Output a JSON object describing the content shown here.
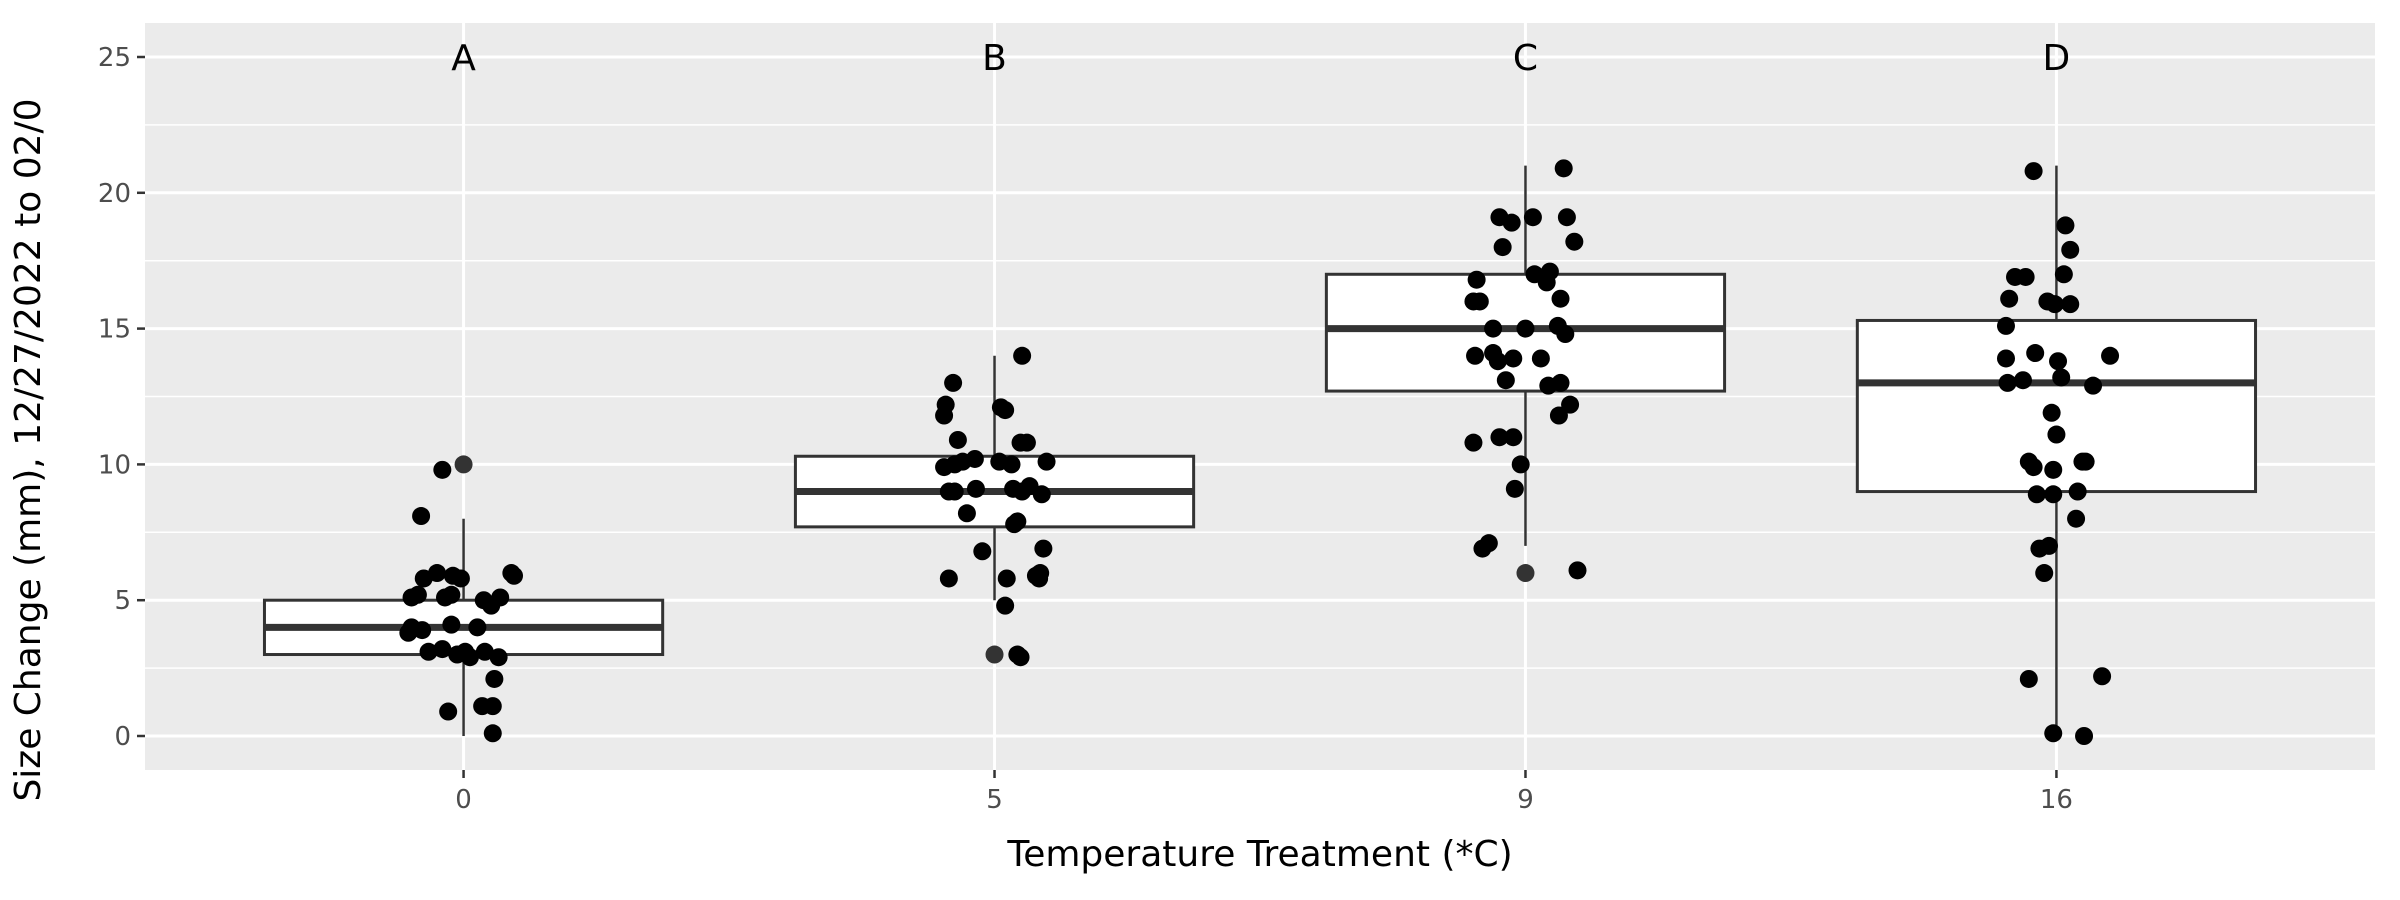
{
  "chart_data": {
    "type": "boxplot",
    "title": "",
    "xlabel": "Temperature Treatment (*C)",
    "ylabel": "Size Change (mm), 12/27/2022 to 02/0",
    "ylim": [
      -1.2,
      26.2
    ],
    "yticks": [
      0,
      5,
      10,
      15,
      20,
      25
    ],
    "categories": [
      "0",
      "5",
      "9",
      "16"
    ],
    "group_letters": [
      "A",
      "B",
      "C",
      "D"
    ],
    "group_letter_y": 25,
    "grid": true,
    "colors": {
      "panel": "#EBEBEB",
      "grid": "#FFFFFF",
      "box_fill": "#FFFFFF",
      "box_line": "#333333",
      "point": "#000000",
      "outlier": "#333333"
    },
    "boxes": [
      {
        "category": "0",
        "whisker_low": 0,
        "q1": 3,
        "median": 4,
        "q3": 5,
        "whisker_high": 8,
        "outliers": [
          10
        ]
      },
      {
        "category": "5",
        "whisker_low": 5,
        "q1": 7.7,
        "median": 9,
        "q3": 10.3,
        "whisker_high": 14,
        "outliers": [
          3
        ]
      },
      {
        "category": "9",
        "whisker_low": 7,
        "q1": 12.7,
        "median": 15,
        "q3": 17,
        "whisker_high": 21,
        "outliers": [
          6
        ]
      },
      {
        "category": "16",
        "whisker_low": 0,
        "q1": 9,
        "median": 13,
        "q3": 15.3,
        "whisker_high": 21,
        "outliers": []
      }
    ],
    "points": [
      [
        [
          -0.04,
          9.8
        ],
        [
          -0.08,
          8.1
        ],
        [
          -0.075,
          5.8
        ],
        [
          -0.05,
          6.0
        ],
        [
          -0.02,
          5.9
        ],
        [
          -0.005,
          5.8
        ],
        [
          0.09,
          6.0
        ],
        [
          0.095,
          5.9
        ],
        [
          -0.098,
          5.1
        ],
        [
          -0.086,
          5.2
        ],
        [
          -0.035,
          5.1
        ],
        [
          -0.023,
          5.2
        ],
        [
          0.038,
          5.0
        ],
        [
          0.052,
          4.8
        ],
        [
          0.069,
          5.1
        ],
        [
          -0.098,
          4.0
        ],
        [
          -0.078,
          3.9
        ],
        [
          -0.023,
          4.1
        ],
        [
          0.026,
          4.0
        ],
        [
          -0.066,
          3.1
        ],
        [
          -0.04,
          3.2
        ],
        [
          -0.012,
          3.0
        ],
        [
          0.003,
          3.1
        ],
        [
          0.012,
          2.9
        ],
        [
          0.04,
          3.1
        ],
        [
          0.066,
          2.9
        ],
        [
          0.058,
          2.1
        ],
        [
          0.035,
          1.1
        ],
        [
          0.055,
          1.1
        ],
        [
          -0.029,
          0.9
        ],
        [
          0.055,
          0.1
        ],
        [
          -0.104,
          3.8
        ]
      ],
      [
        [
          0.052,
          14.0
        ],
        [
          -0.078,
          13.0
        ],
        [
          -0.092,
          12.2
        ],
        [
          -0.095,
          11.8
        ],
        [
          0.012,
          12.1
        ],
        [
          0.02,
          12.0
        ],
        [
          -0.069,
          10.9
        ],
        [
          0.049,
          10.8
        ],
        [
          0.061,
          10.8
        ],
        [
          -0.095,
          9.9
        ],
        [
          -0.075,
          10.0
        ],
        [
          -0.06,
          10.1
        ],
        [
          -0.037,
          10.2
        ],
        [
          0.009,
          10.1
        ],
        [
          0.032,
          10.0
        ],
        [
          0.098,
          10.1
        ],
        [
          -0.086,
          9.0
        ],
        [
          -0.075,
          9.0
        ],
        [
          -0.035,
          9.1
        ],
        [
          0.035,
          9.1
        ],
        [
          0.052,
          9.0
        ],
        [
          0.066,
          9.2
        ],
        [
          0.089,
          8.9
        ],
        [
          -0.052,
          8.2
        ],
        [
          0.043,
          7.9
        ],
        [
          0.037,
          7.8
        ],
        [
          -0.023,
          6.8
        ],
        [
          0.092,
          6.9
        ],
        [
          -0.086,
          5.8
        ],
        [
          0.023,
          5.8
        ],
        [
          0.078,
          5.9
        ],
        [
          0.086,
          6.0
        ],
        [
          0.084,
          5.8
        ],
        [
          0.02,
          4.8
        ],
        [
          0.049,
          2.9
        ],
        [
          0.043,
          3.0
        ]
      ],
      [
        [
          0.072,
          20.9
        ],
        [
          -0.049,
          19.1
        ],
        [
          -0.026,
          18.9
        ],
        [
          0.014,
          19.1
        ],
        [
          0.078,
          19.1
        ],
        [
          -0.043,
          18.0
        ],
        [
          0.092,
          18.2
        ],
        [
          -0.092,
          16.8
        ],
        [
          0.017,
          17.0
        ],
        [
          0.046,
          17.1
        ],
        [
          0.04,
          16.7
        ],
        [
          -0.098,
          16.0
        ],
        [
          -0.086,
          16.0
        ],
        [
          0.066,
          16.1
        ],
        [
          -0.061,
          14.1
        ],
        [
          -0.095,
          14.0
        ],
        [
          -0.052,
          13.8
        ],
        [
          -0.023,
          13.9
        ],
        [
          0.029,
          13.9
        ],
        [
          -0.061,
          15.0
        ],
        [
          0.0,
          15.0
        ],
        [
          0.061,
          15.1
        ],
        [
          0.075,
          14.8
        ],
        [
          -0.037,
          13.1
        ],
        [
          0.043,
          12.9
        ],
        [
          0.066,
          13.0
        ],
        [
          0.084,
          12.2
        ],
        [
          0.063,
          11.8
        ],
        [
          -0.049,
          11.0
        ],
        [
          -0.023,
          11.0
        ],
        [
          -0.098,
          10.8
        ],
        [
          -0.009,
          10.0
        ],
        [
          -0.02,
          9.1
        ],
        [
          -0.069,
          7.1
        ],
        [
          -0.081,
          6.9
        ],
        [
          0.098,
          6.1
        ]
      ],
      [
        [
          -0.043,
          20.8
        ],
        [
          0.017,
          18.8
        ],
        [
          0.026,
          17.9
        ],
        [
          -0.078,
          16.9
        ],
        [
          -0.058,
          16.9
        ],
        [
          0.014,
          17.0
        ],
        [
          -0.089,
          16.1
        ],
        [
          -0.017,
          16.0
        ],
        [
          -0.003,
          15.9
        ],
        [
          0.026,
          15.9
        ],
        [
          -0.095,
          15.1
        ],
        [
          -0.095,
          13.9
        ],
        [
          -0.04,
          14.1
        ],
        [
          0.003,
          13.8
        ],
        [
          0.101,
          14.0
        ],
        [
          -0.092,
          13.0
        ],
        [
          -0.063,
          13.1
        ],
        [
          0.009,
          13.2
        ],
        [
          0.069,
          12.9
        ],
        [
          -0.009,
          11.9
        ],
        [
          0.0,
          11.1
        ],
        [
          -0.052,
          10.1
        ],
        [
          -0.043,
          9.9
        ],
        [
          0.049,
          10.1
        ],
        [
          0.055,
          10.1
        ],
        [
          -0.006,
          9.8
        ],
        [
          -0.037,
          8.9
        ],
        [
          -0.006,
          8.9
        ],
        [
          0.04,
          9.0
        ],
        [
          0.037,
          8.0
        ],
        [
          -0.032,
          6.9
        ],
        [
          -0.014,
          7.0
        ],
        [
          -0.023,
          6.0
        ],
        [
          -0.052,
          2.1
        ],
        [
          0.086,
          2.2
        ],
        [
          -0.006,
          0.1
        ],
        [
          0.052,
          0.0
        ]
      ]
    ]
  }
}
